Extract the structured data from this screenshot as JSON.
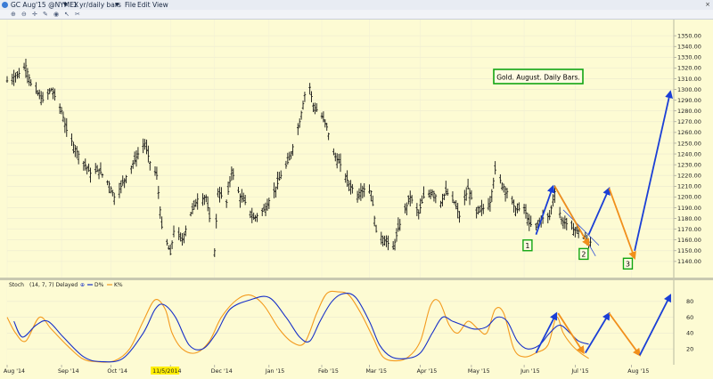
{
  "window": {
    "symbol": "GC Aug'15 @NYMEX",
    "interval": "1 yr/daily bars",
    "menu": [
      "File",
      "Edit",
      "View"
    ],
    "close_glyph": "×",
    "toolbar_icons": [
      "zoom-in-icon",
      "zoom-out-icon",
      "crosshair-icon",
      "draw-icon",
      "eye-icon",
      "cursor-icon",
      "scissors-icon"
    ]
  },
  "colors": {
    "background": "#fdfbd3",
    "bars": "#111111",
    "stoch_d": "#1730c8",
    "stoch_k": "#f39a1e",
    "projection_up": "#1b3fd6",
    "projection_down": "#f18f1b",
    "label_border": "#11a611",
    "highlight_date": "#ffee00"
  },
  "chart_data": [
    {
      "type": "ohlc",
      "title": "Gold. August. Daily Bars.",
      "ylim": [
        1125,
        1365
      ],
      "yticks": [
        1140,
        1150,
        1160,
        1170,
        1180,
        1190,
        1200,
        1210,
        1220,
        1230,
        1240,
        1250,
        1260,
        1270,
        1280,
        1290,
        1300,
        1310,
        1320,
        1330,
        1340,
        1350
      ],
      "ytick_labels": [
        "1140.00",
        "1150.00",
        "1160.00",
        "1170.00",
        "1180.00",
        "1190.00",
        "1200.00",
        "1210.00",
        "1220.00",
        "1230.00",
        "1240.00",
        "1250.00",
        "1260.00",
        "1270.00",
        "1280.00",
        "1290.00",
        "1300.00",
        "1310.00",
        "1320.00",
        "1330.00",
        "1340.00",
        "1350.00"
      ],
      "xaxis": {
        "start": "2014-08-01",
        "end": "2015-08-28",
        "ticks": [
          {
            "date": "2014-08-01",
            "label": "Aug '14"
          },
          {
            "date": "2014-09-02",
            "label": "Sep '14"
          },
          {
            "date": "2014-10-01",
            "label": "Oct '14"
          },
          {
            "date": "2014-11-05",
            "label": "11/5/2014",
            "highlight": true
          },
          {
            "date": "2014-12-01",
            "label": "Dec '14"
          },
          {
            "date": "2015-01-02",
            "label": "Jan '15"
          },
          {
            "date": "2015-02-02",
            "label": "Feb '15"
          },
          {
            "date": "2015-03-02",
            "label": "Mar '15"
          },
          {
            "date": "2015-04-01",
            "label": "Apr '15"
          },
          {
            "date": "2015-05-01",
            "label": "May '15"
          },
          {
            "date": "2015-06-01",
            "label": "Jun '15"
          },
          {
            "date": "2015-07-01",
            "label": "Jul '15"
          },
          {
            "date": "2015-08-03",
            "label": "Aug '15"
          }
        ]
      },
      "price_path": [
        [
          "2014-08-01",
          1308
        ],
        [
          "2014-08-08",
          1315
        ],
        [
          "2014-08-12",
          1322
        ],
        [
          "2014-08-15",
          1305
        ],
        [
          "2014-08-19",
          1296
        ],
        [
          "2014-08-22",
          1290
        ],
        [
          "2014-08-27",
          1300
        ],
        [
          "2014-09-02",
          1280
        ],
        [
          "2014-09-05",
          1262
        ],
        [
          "2014-09-10",
          1245
        ],
        [
          "2014-09-15",
          1232
        ],
        [
          "2014-09-19",
          1222
        ],
        [
          "2014-09-24",
          1225
        ],
        [
          "2014-09-30",
          1212
        ],
        [
          "2014-10-03",
          1200
        ],
        [
          "2014-10-07",
          1210
        ],
        [
          "2014-10-13",
          1228
        ],
        [
          "2014-10-17",
          1240
        ],
        [
          "2014-10-21",
          1250
        ],
        [
          "2014-10-24",
          1232
        ],
        [
          "2014-10-28",
          1220
        ],
        [
          "2014-10-31",
          1172
        ],
        [
          "2014-11-05",
          1147
        ],
        [
          "2014-11-07",
          1168
        ],
        [
          "2014-11-12",
          1160
        ],
        [
          "2014-11-17",
          1185
        ],
        [
          "2014-11-21",
          1198
        ],
        [
          "2014-11-26",
          1200
        ],
        [
          "2014-12-01",
          1150
        ],
        [
          "2014-12-03",
          1205
        ],
        [
          "2014-12-08",
          1195
        ],
        [
          "2014-12-11",
          1225
        ],
        [
          "2014-12-16",
          1200
        ],
        [
          "2014-12-19",
          1195
        ],
        [
          "2014-12-24",
          1180
        ],
        [
          "2014-12-30",
          1188
        ],
        [
          "2015-01-05",
          1205
        ],
        [
          "2015-01-09",
          1220
        ],
        [
          "2015-01-14",
          1235
        ],
        [
          "2015-01-20",
          1270
        ],
        [
          "2015-01-23",
          1295
        ],
        [
          "2015-01-26",
          1302
        ],
        [
          "2015-01-28",
          1285
        ],
        [
          "2015-02-02",
          1275
        ],
        [
          "2015-02-05",
          1265
        ],
        [
          "2015-02-09",
          1240
        ],
        [
          "2015-02-13",
          1230
        ],
        [
          "2015-02-18",
          1212
        ],
        [
          "2015-02-23",
          1202
        ],
        [
          "2015-02-26",
          1208
        ],
        [
          "2015-03-03",
          1205
        ],
        [
          "2015-03-06",
          1168
        ],
        [
          "2015-03-11",
          1160
        ],
        [
          "2015-03-16",
          1152
        ],
        [
          "2015-03-19",
          1170
        ],
        [
          "2015-03-23",
          1188
        ],
        [
          "2015-03-26",
          1200
        ],
        [
          "2015-03-31",
          1185
        ],
        [
          "2015-04-03",
          1200
        ],
        [
          "2015-04-08",
          1205
        ],
        [
          "2015-04-13",
          1195
        ],
        [
          "2015-04-16",
          1205
        ],
        [
          "2015-04-21",
          1195
        ],
        [
          "2015-04-24",
          1182
        ],
        [
          "2015-04-29",
          1208
        ],
        [
          "2015-05-04",
          1185
        ],
        [
          "2015-05-07",
          1188
        ],
        [
          "2015-05-12",
          1195
        ],
        [
          "2015-05-15",
          1225
        ],
        [
          "2015-05-19",
          1212
        ],
        [
          "2015-05-22",
          1205
        ],
        [
          "2015-05-27",
          1188
        ],
        [
          "2015-06-01",
          1190
        ],
        [
          "2015-06-04",
          1175
        ],
        [
          "2015-06-08",
          1172
        ],
        [
          "2015-06-11",
          1180
        ],
        [
          "2015-06-16",
          1182
        ],
        [
          "2015-06-19",
          1205
        ],
        [
          "2015-06-23",
          1178
        ],
        [
          "2015-06-26",
          1175
        ],
        [
          "2015-06-30",
          1170
        ],
        [
          "2015-07-03",
          1168
        ],
        [
          "2015-07-06",
          1162
        ],
        [
          "2015-07-09",
          1158
        ],
        [
          "2015-07-10",
          1158
        ]
      ],
      "annotations": [
        {
          "label": "1",
          "date": "2015-06-03",
          "value": 1155
        },
        {
          "label": "2",
          "date": "2015-07-06",
          "value": 1147
        },
        {
          "label": "3",
          "date": "2015-08-01",
          "value": 1138
        }
      ],
      "projection_arrows": [
        {
          "color": "up",
          "from": [
            "2015-06-08",
            1165
          ],
          "to": [
            "2015-06-18",
            1210
          ]
        },
        {
          "color": "down",
          "from": [
            "2015-06-19",
            1210
          ],
          "to": [
            "2015-07-09",
            1155
          ]
        },
        {
          "color": "up",
          "from": [
            "2015-07-09",
            1165
          ],
          "to": [
            "2015-07-21",
            1208
          ]
        },
        {
          "color": "down",
          "from": [
            "2015-07-21",
            1208
          ],
          "to": [
            "2015-08-05",
            1143
          ]
        },
        {
          "color": "up",
          "from": [
            "2015-08-05",
            1150
          ],
          "to": [
            "2015-08-26",
            1298
          ]
        }
      ],
      "channel_lines": [
        {
          "from": [
            "2015-06-20",
            1208
          ],
          "to": [
            "2015-07-13",
            1145
          ]
        },
        {
          "from": [
            "2015-06-24",
            1188
          ],
          "to": [
            "2015-07-15",
            1155
          ]
        }
      ]
    },
    {
      "type": "line",
      "indicator": "Stoch",
      "params": "(14, 7, 7) Delayed",
      "series": [
        {
          "name": "D%",
          "color_key": "stoch_d"
        },
        {
          "name": "K%",
          "color_key": "stoch_k"
        }
      ],
      "ylim": [
        0,
        100
      ],
      "yticks": [
        20,
        40,
        60,
        80
      ],
      "ytick_labels": [
        "20",
        "40",
        "60",
        "80"
      ],
      "d_path": [
        [
          "2014-08-05",
          55
        ],
        [
          "2014-08-10",
          35
        ],
        [
          "2014-08-18",
          50
        ],
        [
          "2014-08-25",
          55
        ],
        [
          "2014-09-03",
          35
        ],
        [
          "2014-09-15",
          10
        ],
        [
          "2014-09-25",
          4
        ],
        [
          "2014-10-08",
          8
        ],
        [
          "2014-10-20",
          40
        ],
        [
          "2014-10-27",
          70
        ],
        [
          "2014-11-01",
          76
        ],
        [
          "2014-11-08",
          60
        ],
        [
          "2014-11-16",
          25
        ],
        [
          "2014-11-24",
          20
        ],
        [
          "2014-12-02",
          40
        ],
        [
          "2014-12-10",
          70
        ],
        [
          "2014-12-22",
          82
        ],
        [
          "2015-01-02",
          85
        ],
        [
          "2015-01-12",
          60
        ],
        [
          "2015-01-20",
          35
        ],
        [
          "2015-01-26",
          30
        ],
        [
          "2015-02-01",
          55
        ],
        [
          "2015-02-08",
          80
        ],
        [
          "2015-02-15",
          90
        ],
        [
          "2015-02-22",
          85
        ],
        [
          "2015-03-02",
          55
        ],
        [
          "2015-03-08",
          25
        ],
        [
          "2015-03-15",
          10
        ],
        [
          "2015-03-24",
          8
        ],
        [
          "2015-04-01",
          15
        ],
        [
          "2015-04-08",
          40
        ],
        [
          "2015-04-14",
          60
        ],
        [
          "2015-04-20",
          55
        ],
        [
          "2015-04-26",
          50
        ],
        [
          "2015-05-03",
          45
        ],
        [
          "2015-05-10",
          48
        ],
        [
          "2015-05-16",
          60
        ],
        [
          "2015-05-22",
          55
        ],
        [
          "2015-05-28",
          30
        ],
        [
          "2015-06-03",
          20
        ],
        [
          "2015-06-10",
          25
        ],
        [
          "2015-06-16",
          40
        ],
        [
          "2015-06-22",
          50
        ],
        [
          "2015-06-28",
          40
        ],
        [
          "2015-07-03",
          30
        ],
        [
          "2015-07-09",
          26
        ]
      ],
      "k_path": [
        [
          "2014-08-01",
          60
        ],
        [
          "2014-08-06",
          40
        ],
        [
          "2014-08-12",
          30
        ],
        [
          "2014-08-20",
          60
        ],
        [
          "2014-08-27",
          45
        ],
        [
          "2014-09-05",
          25
        ],
        [
          "2014-09-14",
          8
        ],
        [
          "2014-09-22",
          4
        ],
        [
          "2014-10-03",
          5
        ],
        [
          "2014-10-12",
          20
        ],
        [
          "2014-10-20",
          55
        ],
        [
          "2014-10-27",
          82
        ],
        [
          "2014-11-02",
          70
        ],
        [
          "2014-11-06",
          40
        ],
        [
          "2014-11-12",
          20
        ],
        [
          "2014-11-20",
          15
        ],
        [
          "2014-11-28",
          30
        ],
        [
          "2014-12-05",
          60
        ],
        [
          "2014-12-14",
          82
        ],
        [
          "2014-12-22",
          88
        ],
        [
          "2014-12-30",
          75
        ],
        [
          "2015-01-08",
          45
        ],
        [
          "2015-01-16",
          28
        ],
        [
          "2015-01-23",
          28
        ],
        [
          "2015-01-30",
          65
        ],
        [
          "2015-02-05",
          90
        ],
        [
          "2015-02-12",
          92
        ],
        [
          "2015-02-18",
          88
        ],
        [
          "2015-02-25",
          65
        ],
        [
          "2015-03-04",
          35
        ],
        [
          "2015-03-10",
          10
        ],
        [
          "2015-03-18",
          5
        ],
        [
          "2015-03-25",
          10
        ],
        [
          "2015-04-01",
          30
        ],
        [
          "2015-04-07",
          75
        ],
        [
          "2015-04-12",
          80
        ],
        [
          "2015-04-18",
          50
        ],
        [
          "2015-04-23",
          40
        ],
        [
          "2015-04-29",
          55
        ],
        [
          "2015-05-05",
          45
        ],
        [
          "2015-05-10",
          40
        ],
        [
          "2015-05-15",
          70
        ],
        [
          "2015-05-20",
          65
        ],
        [
          "2015-05-26",
          20
        ],
        [
          "2015-06-01",
          10
        ],
        [
          "2015-06-08",
          15
        ],
        [
          "2015-06-15",
          25
        ],
        [
          "2015-06-20",
          60
        ],
        [
          "2015-06-24",
          40
        ],
        [
          "2015-06-29",
          25
        ],
        [
          "2015-07-04",
          15
        ],
        [
          "2015-07-09",
          8
        ]
      ],
      "projection_arrows": [
        {
          "color": "up",
          "from": [
            "2015-06-08",
            15
          ],
          "to": [
            "2015-06-20",
            65
          ]
        },
        {
          "color": "down",
          "from": [
            "2015-06-21",
            65
          ],
          "to": [
            "2015-07-06",
            15
          ]
        },
        {
          "color": "up",
          "from": [
            "2015-07-07",
            15
          ],
          "to": [
            "2015-07-21",
            65
          ]
        },
        {
          "color": "down",
          "from": [
            "2015-07-21",
            65
          ],
          "to": [
            "2015-08-08",
            12
          ]
        },
        {
          "color": "up",
          "from": [
            "2015-08-08",
            12
          ],
          "to": [
            "2015-08-26",
            88
          ]
        }
      ]
    }
  ]
}
